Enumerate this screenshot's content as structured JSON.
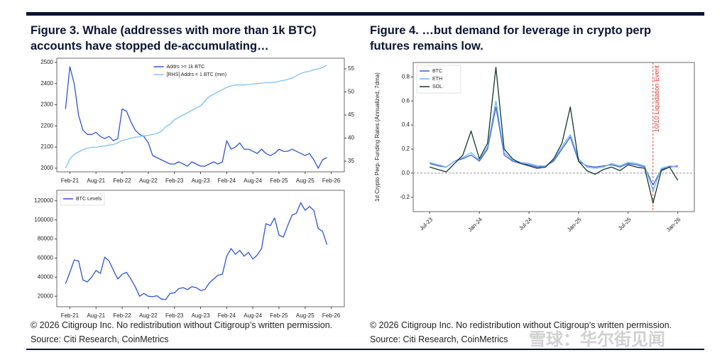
{
  "chart_data": [
    {
      "type": "line",
      "title": "Figure 3. Whale (addresses with more than 1k BTC) accounts have stopped de-accumulating…",
      "note": "© 2026 Citigroup Inc. No redistribution without Citigroup’s written permission.",
      "source": "Source: Citi Research, CoinMetrics",
      "legend": "upper center",
      "grid": false,
      "x": [
        "2021-01",
        "2021-02",
        "2021-03",
        "2021-04",
        "2021-05",
        "2021-06",
        "2021-07",
        "2021-08",
        "2021-09",
        "2021-10",
        "2021-11",
        "2021-12",
        "2022-01",
        "2022-02",
        "2022-03",
        "2022-04",
        "2022-05",
        "2022-06",
        "2022-07",
        "2022-08",
        "2022-09",
        "2022-10",
        "2022-11",
        "2022-12",
        "2023-01",
        "2023-02",
        "2023-03",
        "2023-04",
        "2023-05",
        "2023-06",
        "2023-07",
        "2023-08",
        "2023-09",
        "2023-10",
        "2023-11",
        "2023-12",
        "2024-01",
        "2024-02",
        "2024-03",
        "2024-04",
        "2024-05",
        "2024-06",
        "2024-07",
        "2024-08",
        "2024-09",
        "2024-10",
        "2024-11",
        "2024-12",
        "2025-01",
        "2025-02",
        "2025-03",
        "2025-04",
        "2025-05",
        "2025-06",
        "2025-07",
        "2025-08",
        "2025-09",
        "2025-10",
        "2025-11",
        "2025-12",
        "2026-01"
      ],
      "xlim": [
        "2020-11",
        "2026-05"
      ],
      "xticks": [
        {
          "value": "2021-02",
          "label": "Feb-21"
        },
        {
          "value": "2021-08",
          "label": "Aug-21"
        },
        {
          "value": "2022-02",
          "label": "Feb-22"
        },
        {
          "value": "2022-08",
          "label": "Aug-22"
        },
        {
          "value": "2023-02",
          "label": "Feb-23"
        },
        {
          "value": "2023-08",
          "label": "Aug-23"
        },
        {
          "value": "2024-02",
          "label": "Feb-24"
        },
        {
          "value": "2024-08",
          "label": "Aug-24"
        },
        {
          "value": "2025-02",
          "label": "Feb-25"
        },
        {
          "value": "2025-08",
          "label": "Aug-25"
        },
        {
          "value": "2026-02",
          "label": "Feb-26"
        }
      ],
      "ylim": [
        1983,
        2520
      ],
      "yticks": [
        2000,
        2100,
        2200,
        2300,
        2400,
        2500
      ],
      "y2lim": [
        32.7,
        57.3
      ],
      "y2ticks": [
        35,
        40,
        45,
        50,
        55
      ],
      "series": [
        {
          "name": "Addrs >= 1k BTC",
          "color": "#2f55d4",
          "values": [
            2280,
            2480,
            2400,
            2250,
            2180,
            2160,
            2160,
            2170,
            2150,
            2140,
            2150,
            2130,
            2140,
            2280,
            2270,
            2220,
            2180,
            2160,
            2150,
            2120,
            2060,
            2050,
            2040,
            2030,
            2020,
            2020,
            2030,
            2020,
            2010,
            2030,
            2020,
            2010,
            2010,
            2020,
            2030,
            2020,
            2030,
            2130,
            2090,
            2100,
            2120,
            2090,
            2090,
            2080,
            2070,
            2090,
            2070,
            2060,
            2070,
            2090,
            2080,
            2080,
            2090,
            2080,
            2070,
            2060,
            2070,
            2040,
            2000,
            2040,
            2050
          ]
        },
        {
          "name": "[RHS] Addrs < 1 BTC (mm)",
          "color": "#7ec3f0",
          "axis": "y2",
          "values": [
            33.5,
            35.5,
            36.5,
            37,
            37.5,
            37.8,
            38,
            38,
            38.2,
            38.3,
            38.5,
            38.6,
            39,
            39.5,
            39.7,
            40,
            40.2,
            40.3,
            40.5,
            40.6,
            40.8,
            41,
            41.5,
            42.5,
            43,
            44,
            44.5,
            45,
            45.5,
            46,
            46.5,
            47,
            48,
            49,
            49.5,
            50,
            50.5,
            51,
            51.3,
            51.5,
            51.5,
            51.5,
            51.6,
            51.7,
            51.8,
            51.9,
            52,
            52,
            52.1,
            52.3,
            52.5,
            52.7,
            53,
            53.5,
            54,
            54.3,
            54.5,
            54.8,
            55,
            55.3,
            55.8
          ]
        }
      ]
    },
    {
      "type": "line",
      "legend": "upper left",
      "grid": false,
      "x": [
        "2021-01",
        "2021-02",
        "2021-03",
        "2021-04",
        "2021-05",
        "2021-06",
        "2021-07",
        "2021-08",
        "2021-09",
        "2021-10",
        "2021-11",
        "2021-12",
        "2022-01",
        "2022-02",
        "2022-03",
        "2022-04",
        "2022-05",
        "2022-06",
        "2022-07",
        "2022-08",
        "2022-09",
        "2022-10",
        "2022-11",
        "2022-12",
        "2023-01",
        "2023-02",
        "2023-03",
        "2023-04",
        "2023-05",
        "2023-06",
        "2023-07",
        "2023-08",
        "2023-09",
        "2023-10",
        "2023-11",
        "2023-12",
        "2024-01",
        "2024-02",
        "2024-03",
        "2024-04",
        "2024-05",
        "2024-06",
        "2024-07",
        "2024-08",
        "2024-09",
        "2024-10",
        "2024-11",
        "2024-12",
        "2025-01",
        "2025-02",
        "2025-03",
        "2025-04",
        "2025-05",
        "2025-06",
        "2025-07",
        "2025-08",
        "2025-09",
        "2025-10",
        "2025-11",
        "2025-12",
        "2026-01"
      ],
      "xlim": [
        "2020-11",
        "2026-05"
      ],
      "xticks": [
        {
          "value": "2021-02",
          "label": "Feb-21"
        },
        {
          "value": "2021-08",
          "label": "Aug-21"
        },
        {
          "value": "2022-02",
          "label": "Feb-22"
        },
        {
          "value": "2022-08",
          "label": "Aug-22"
        },
        {
          "value": "2023-02",
          "label": "Feb-23"
        },
        {
          "value": "2023-08",
          "label": "Aug-23"
        },
        {
          "value": "2024-02",
          "label": "Feb-24"
        },
        {
          "value": "2024-08",
          "label": "Aug-24"
        },
        {
          "value": "2025-02",
          "label": "Feb-25"
        },
        {
          "value": "2025-08",
          "label": "Aug-25"
        },
        {
          "value": "2026-02",
          "label": "Feb-26"
        }
      ],
      "ylim": [
        9000,
        131000
      ],
      "yticks": [
        20000,
        40000,
        60000,
        80000,
        100000,
        120000
      ],
      "series": [
        {
          "name": "BTC Levels",
          "color": "#2f55d4",
          "values": [
            33000,
            45000,
            58000,
            57000,
            37000,
            35000,
            40000,
            47000,
            44000,
            61000,
            57000,
            47000,
            38000,
            43000,
            45000,
            38000,
            30000,
            20000,
            23000,
            20000,
            19500,
            20500,
            17000,
            16500,
            23000,
            23500,
            28000,
            29000,
            27000,
            30000,
            29000,
            26000,
            27000,
            34000,
            38000,
            42000,
            43000,
            62000,
            70000,
            64000,
            68000,
            62000,
            66000,
            59000,
            63000,
            70000,
            96000,
            94000,
            102000,
            84000,
            82000,
            94000,
            105000,
            107000,
            118000,
            110000,
            114000,
            110000,
            91000,
            88000,
            74000
          ]
        }
      ]
    },
    {
      "type": "line",
      "title": "Figure 4. …but demand for leverage in crypto perp futures remains low.",
      "note": "© 2026 Citigroup Inc. No redistribution without Citigroup’s written permission.",
      "source": "Source: Citi Research, CoinMetrics",
      "ylabel": "1d Crypto Perp. Funding Rates (Annualized, 7dma)",
      "legend": "upper left",
      "grid": false,
      "hline": 0,
      "annotations": [
        {
          "x": "2025-10",
          "text": "10/10 Liquidation Event"
        }
      ],
      "x": [
        "2023-07",
        "2023-08",
        "2023-09",
        "2023-10",
        "2023-11",
        "2023-12",
        "2024-01",
        "2024-02",
        "2024-03",
        "2024-04",
        "2024-05",
        "2024-06",
        "2024-07",
        "2024-08",
        "2024-09",
        "2024-10",
        "2024-11",
        "2024-12",
        "2025-01",
        "2025-02",
        "2025-03",
        "2025-04",
        "2025-05",
        "2025-06",
        "2025-07",
        "2025-08",
        "2025-09",
        "2025-10",
        "2025-11",
        "2025-12",
        "2026-01"
      ],
      "xlim": [
        "2023-05",
        "2026-03"
      ],
      "xticks": [
        {
          "value": "2023-07",
          "label": "Jul-23"
        },
        {
          "value": "2024-01",
          "label": "Jan-24"
        },
        {
          "value": "2024-07",
          "label": "Jul-24"
        },
        {
          "value": "2025-01",
          "label": "Jan-25"
        },
        {
          "value": "2025-07",
          "label": "Jul-25"
        },
        {
          "value": "2026-01",
          "label": "Jan-26"
        }
      ],
      "ylim": [
        -0.32,
        0.92
      ],
      "yticks": [
        -0.2,
        {
          "value": 0,
          "label": "0.0"
        },
        0.2,
        0.4,
        0.6,
        0.8
      ],
      "series": [
        {
          "name": "BTC",
          "color": "#3a5fd6",
          "values": [
            0.08,
            0.06,
            0.05,
            0.1,
            0.12,
            0.15,
            0.1,
            0.2,
            0.55,
            0.15,
            0.1,
            0.08,
            0.07,
            0.05,
            0.06,
            0.1,
            0.2,
            0.3,
            0.1,
            0.06,
            0.05,
            0.06,
            0.07,
            0.05,
            0.08,
            0.07,
            0.05,
            -0.1,
            0.03,
            0.05,
            0.06
          ]
        },
        {
          "name": "ETH",
          "color": "#6cb4f0",
          "values": [
            0.09,
            0.07,
            0.05,
            0.1,
            0.13,
            0.17,
            0.11,
            0.22,
            0.6,
            0.17,
            0.11,
            0.09,
            0.08,
            0.06,
            0.06,
            0.11,
            0.22,
            0.32,
            0.12,
            0.05,
            0.04,
            0.05,
            0.08,
            0.06,
            0.09,
            0.08,
            0.06,
            -0.15,
            0.04,
            0.06,
            0.05
          ]
        },
        {
          "name": "SOL",
          "color": "#14362a",
          "values": [
            0.05,
            0.03,
            0.01,
            0.08,
            0.15,
            0.35,
            0.12,
            0.25,
            0.88,
            0.2,
            0.12,
            0.08,
            0.06,
            0.04,
            0.05,
            0.12,
            0.25,
            0.55,
            0.1,
            0.02,
            -0.01,
            0.03,
            0.05,
            0.02,
            0.07,
            0.05,
            0.04,
            -0.25,
            0.02,
            0.05,
            -0.06
          ]
        }
      ]
    }
  ],
  "watermark": "雪球：华尔街见闻"
}
